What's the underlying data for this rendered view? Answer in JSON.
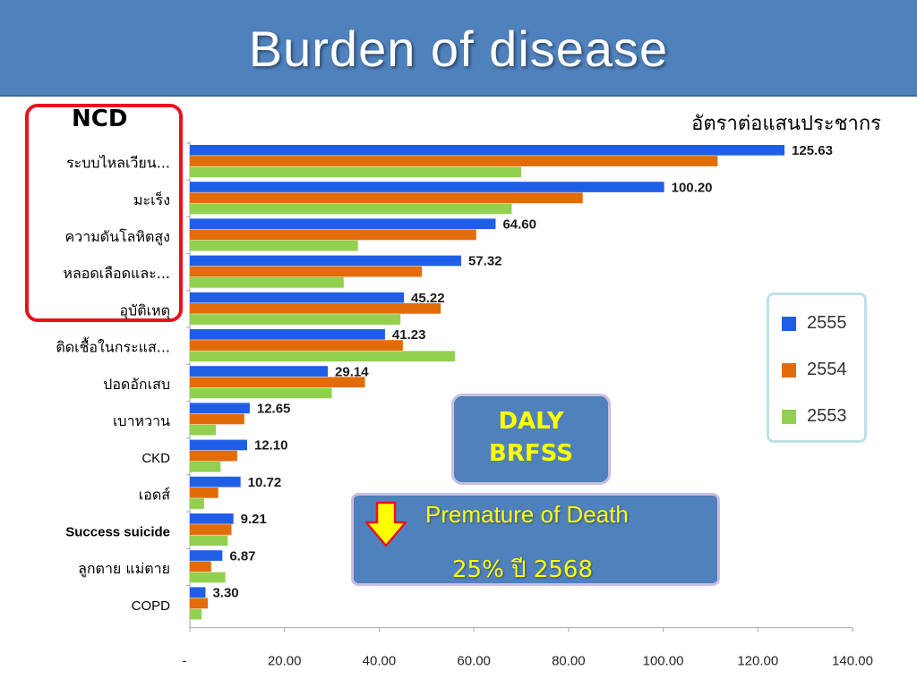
{
  "header": {
    "title": "Burden of disease"
  },
  "ncd_label": "NCD",
  "unit_label": "อัตราต่อแสนประชากร",
  "chart_data": {
    "type": "bar",
    "orientation": "horizontal",
    "categories": [
      "ระบบไหลเวียน...",
      "มะเร็ง",
      "ความดันโลหิตสูง",
      "หลอดเลือดและ...",
      "อุบัติเหตุ",
      "ติดเชื้อในกระแส...",
      "ปอดอักเสบ",
      "เบาหวาน",
      "CKD",
      "เอดส์",
      "Success suicide",
      "ลูกตาย แม่ตาย",
      "COPD"
    ],
    "series": [
      {
        "name": "2555",
        "color": "#1f5fe8",
        "values": [
          125.63,
          100.2,
          64.6,
          57.32,
          45.22,
          41.23,
          29.14,
          12.65,
          12.1,
          10.72,
          9.21,
          6.87,
          3.3
        ]
      },
      {
        "name": "2554",
        "color": "#e36c0a",
        "values": [
          111.5,
          83.0,
          60.5,
          49.0,
          53.0,
          45.0,
          37.0,
          11.5,
          10.0,
          6.0,
          8.8,
          4.5,
          3.8
        ]
      },
      {
        "name": "2553",
        "color": "#92d050",
        "values": [
          70.0,
          68.0,
          35.5,
          32.5,
          44.5,
          56.0,
          30.0,
          5.5,
          6.5,
          3.0,
          8.0,
          7.5,
          2.5
        ]
      }
    ],
    "data_labels": [
      "125.63",
      "100.20",
      "64.60",
      "57.32",
      "45.22",
      "41.23",
      "29.14",
      "12.65",
      "12.10",
      "10.72",
      "9.21",
      "6.87",
      "3.30"
    ],
    "xlim": [
      0,
      140
    ],
    "x_ticks": [
      "-",
      "20.00",
      "40.00",
      "60.00",
      "80.00",
      "100.00",
      "120.00",
      "140.00"
    ],
    "legend_position": "right",
    "grid": false
  },
  "legend": {
    "items": [
      {
        "label": "2555",
        "color": "#1f5fe8"
      },
      {
        "label": "2554",
        "color": "#e36c0a"
      },
      {
        "label": "2553",
        "color": "#92d050"
      }
    ]
  },
  "daly": {
    "line1": "DALY",
    "line2": "BRFSS"
  },
  "premature": {
    "title": "Premature of Death",
    "value": "25% ปี 2568",
    "arrow_icon": "down-arrow-icon"
  }
}
